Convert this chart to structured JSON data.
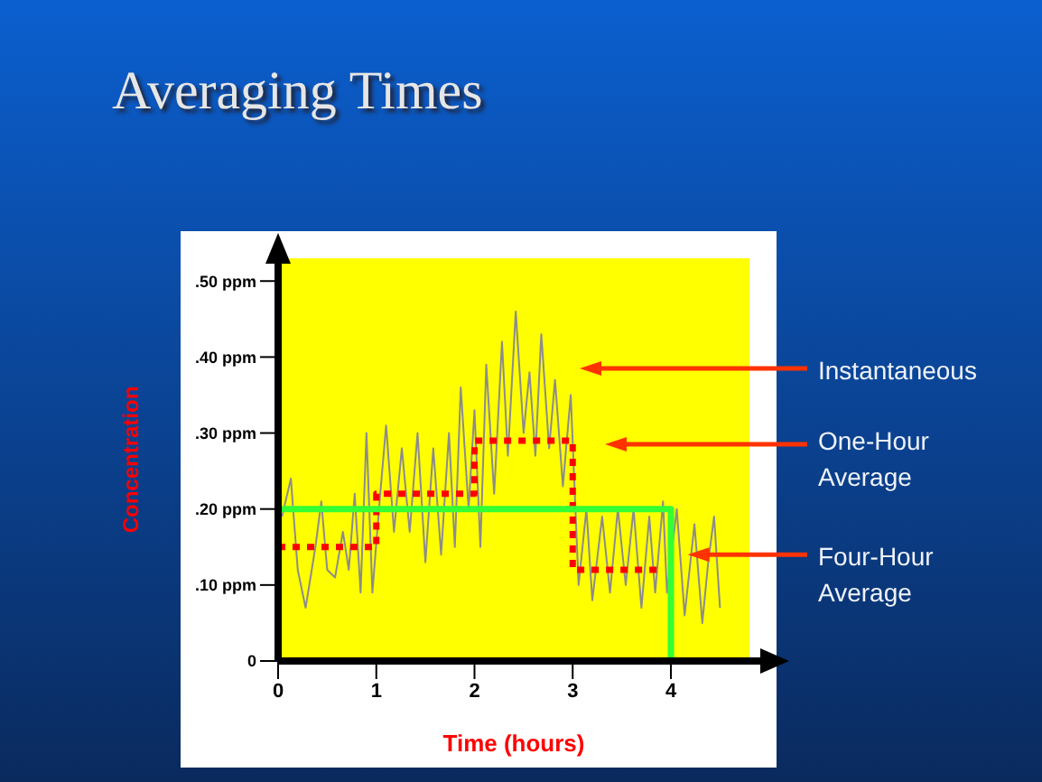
{
  "chart_data": {
    "type": "line",
    "title": "Averaging Times",
    "xlabel": "Time (hours)",
    "ylabel": "Concentration",
    "xlim": [
      0,
      4.8
    ],
    "ylim": [
      0,
      0.53
    ],
    "xticks": [
      0,
      1,
      2,
      3,
      4
    ],
    "yticks": [
      0,
      {
        "value": 0.1,
        "label": ".10 ppm"
      },
      {
        "value": 0.2,
        "label": ".20 ppm"
      },
      {
        "value": 0.3,
        "label": ".30 ppm"
      },
      {
        "value": 0.4,
        "label": ".40 ppm"
      },
      {
        "value": 0.5,
        "label": ".50 ppm"
      }
    ],
    "series": [
      {
        "color": "#8c8c8c",
        "x": [
          0.04,
          0.13,
          0.2,
          0.28,
          0.38,
          0.44,
          0.5,
          0.58,
          0.66,
          0.72,
          0.78,
          0.84,
          0.9,
          0.96,
          1.04,
          1.1,
          1.18,
          1.26,
          1.34,
          1.42,
          1.5,
          1.58,
          1.66,
          1.74,
          1.8,
          1.86,
          1.94,
          2.0,
          2.06,
          2.12,
          2.2,
          2.28,
          2.34,
          2.42,
          2.5,
          2.56,
          2.62,
          2.68,
          2.76,
          2.82,
          2.9,
          2.98,
          3.06,
          3.14,
          3.2,
          3.3,
          3.38,
          3.46,
          3.54,
          3.62,
          3.7,
          3.78,
          3.84,
          3.92,
          3.96,
          4.06,
          4.14,
          4.24,
          4.32,
          4.38,
          4.44,
          4.5
        ],
        "values": [
          0.19,
          0.24,
          0.12,
          0.07,
          0.15,
          0.21,
          0.12,
          0.11,
          0.17,
          0.12,
          0.22,
          0.09,
          0.3,
          0.09,
          0.22,
          0.31,
          0.17,
          0.28,
          0.17,
          0.3,
          0.13,
          0.28,
          0.14,
          0.3,
          0.15,
          0.36,
          0.2,
          0.33,
          0.15,
          0.39,
          0.22,
          0.42,
          0.27,
          0.46,
          0.3,
          0.38,
          0.27,
          0.43,
          0.28,
          0.37,
          0.23,
          0.35,
          0.1,
          0.2,
          0.08,
          0.19,
          0.09,
          0.2,
          0.1,
          0.2,
          0.07,
          0.19,
          0.09,
          0.21,
          0.09,
          0.2,
          0.06,
          0.18,
          0.05,
          0.13,
          0.19,
          0.07
        ]
      },
      {
        "type": "step",
        "color": "#ff0000",
        "line_style": "dotted",
        "x": [
          0,
          1,
          2,
          3,
          3.9
        ],
        "values": [
          0.15,
          0.22,
          0.29,
          0.12,
          0.12
        ]
      },
      {
        "type": "line",
        "color": "#33ff33",
        "x": [
          0,
          4,
          4
        ],
        "values": [
          0.2,
          0.2,
          0
        ]
      }
    ],
    "annotations": [
      "Instantaneous",
      "One-Hour Average",
      {
        "text": "Four-Hour Average",
        "x": 4.17,
        "y": 0.14
      }
    ]
  }
}
